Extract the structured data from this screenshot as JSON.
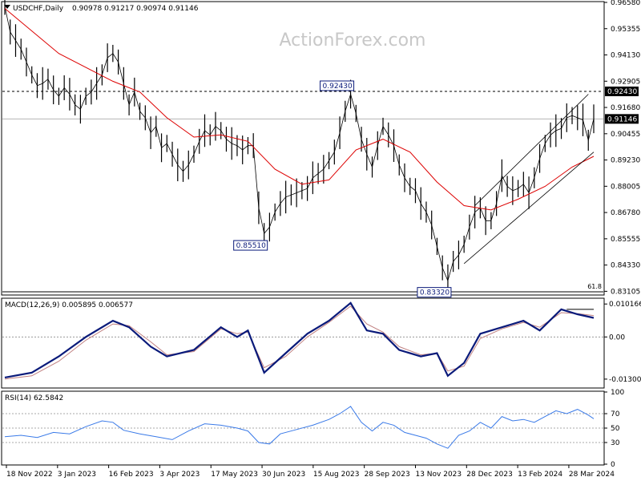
{
  "header": {
    "symbol_info": "USDCHF,Daily",
    "ohlc": "0.90978 0.91217 0.90974 0.91146",
    "watermark": "ActionForex.com"
  },
  "colors": {
    "price": "#000000",
    "ma": "#dd0000",
    "macd": "#0a1a7a",
    "signal": "#c08080",
    "rsi": "#3a7ae8",
    "channel": "#000000",
    "label_box": "#0a1a7a",
    "background": "#ffffff"
  },
  "chart_data": [
    {
      "type": "line",
      "name": "price",
      "title": "USDCHF,Daily",
      "ylim": [
        0.8297,
        0.9658
      ],
      "y_ticks": [
        "0.96580",
        "0.95355",
        "0.94130",
        "0.92905",
        "0.91680",
        "0.90455",
        "0.89230",
        "0.88005",
        "0.86780",
        "0.85555",
        "0.84330",
        "0.83105"
      ],
      "current_value": "0.91146",
      "reference_level": "0.92430",
      "fib_label": "61.8",
      "x_labels": [
        "18 Nov 2022",
        "3 Jan 2023",
        "16 Feb 2023",
        "3 Apr 2023",
        "17 May 2023",
        "30 Jun 2023",
        "15 Aug 2023",
        "28 Sep 2023",
        "13 Nov 2023",
        "28 Dec 2023",
        "13 Feb 2024",
        "28 Mar 2024"
      ],
      "annotations": [
        {
          "label": "0.92430",
          "date_index": 64,
          "value": 0.9243
        },
        {
          "label": "0.85510",
          "date_index": 48,
          "value": 0.8551
        },
        {
          "label": "0.83320",
          "date_index": 82,
          "value": 0.8332
        }
      ],
      "price_points": [
        [
          0,
          0.964
        ],
        [
          1,
          0.952
        ],
        [
          2,
          0.948
        ],
        [
          3,
          0.944
        ],
        [
          4,
          0.938
        ],
        [
          5,
          0.932
        ],
        [
          6,
          0.927
        ],
        [
          7,
          0.928
        ],
        [
          8,
          0.93
        ],
        [
          9,
          0.925
        ],
        [
          10,
          0.922
        ],
        [
          11,
          0.926
        ],
        [
          12,
          0.923
        ],
        [
          13,
          0.918
        ],
        [
          14,
          0.916
        ],
        [
          15,
          0.922
        ],
        [
          16,
          0.924
        ],
        [
          17,
          0.928
        ],
        [
          18,
          0.932
        ],
        [
          19,
          0.94
        ],
        [
          20,
          0.942
        ],
        [
          21,
          0.938
        ],
        [
          22,
          0.928
        ],
        [
          23,
          0.918
        ],
        [
          24,
          0.924
        ],
        [
          25,
          0.915
        ],
        [
          26,
          0.912
        ],
        [
          27,
          0.905
        ],
        [
          28,
          0.908
        ],
        [
          29,
          0.898
        ],
        [
          30,
          0.9
        ],
        [
          31,
          0.895
        ],
        [
          32,
          0.89
        ],
        [
          33,
          0.887
        ],
        [
          34,
          0.89
        ],
        [
          35,
          0.895
        ],
        [
          36,
          0.901
        ],
        [
          37,
          0.906
        ],
        [
          38,
          0.904
        ],
        [
          39,
          0.908
        ],
        [
          40,
          0.906
        ],
        [
          41,
          0.902
        ],
        [
          42,
          0.9
        ],
        [
          43,
          0.899
        ],
        [
          44,
          0.897
        ],
        [
          45,
          0.899
        ],
        [
          46,
          0.899
        ],
        [
          47,
          0.87
        ],
        [
          48,
          0.858
        ],
        [
          49,
          0.861
        ],
        [
          50,
          0.868
        ],
        [
          51,
          0.872
        ],
        [
          52,
          0.875
        ],
        [
          53,
          0.876
        ],
        [
          54,
          0.877
        ],
        [
          55,
          0.878
        ],
        [
          56,
          0.879
        ],
        [
          57,
          0.884
        ],
        [
          58,
          0.886
        ],
        [
          59,
          0.888
        ],
        [
          60,
          0.892
        ],
        [
          61,
          0.896
        ],
        [
          62,
          0.905
        ],
        [
          63,
          0.915
        ],
        [
          64,
          0.923
        ],
        [
          65,
          0.914
        ],
        [
          66,
          0.902
        ],
        [
          67,
          0.895
        ],
        [
          68,
          0.889
        ],
        [
          69,
          0.899
        ],
        [
          70,
          0.908
        ],
        [
          71,
          0.904
        ],
        [
          72,
          0.899
        ],
        [
          73,
          0.89
        ],
        [
          74,
          0.884
        ],
        [
          75,
          0.88
        ],
        [
          76,
          0.878
        ],
        [
          77,
          0.872
        ],
        [
          78,
          0.868
        ],
        [
          79,
          0.862
        ],
        [
          80,
          0.852
        ],
        [
          81,
          0.842
        ],
        [
          82,
          0.836
        ],
        [
          83,
          0.845
        ],
        [
          84,
          0.848
        ],
        [
          85,
          0.853
        ],
        [
          86,
          0.861
        ],
        [
          87,
          0.868
        ],
        [
          88,
          0.87
        ],
        [
          89,
          0.864
        ],
        [
          90,
          0.864
        ],
        [
          91,
          0.872
        ],
        [
          92,
          0.885
        ],
        [
          93,
          0.88
        ],
        [
          94,
          0.878
        ],
        [
          95,
          0.879
        ],
        [
          96,
          0.881
        ],
        [
          97,
          0.877
        ],
        [
          98,
          0.884
        ],
        [
          99,
          0.893
        ],
        [
          100,
          0.9
        ],
        [
          101,
          0.904
        ],
        [
          102,
          0.906
        ],
        [
          103,
          0.907
        ],
        [
          104,
          0.912
        ],
        [
          105,
          0.913
        ],
        [
          106,
          0.912
        ],
        [
          107,
          0.911
        ],
        [
          108,
          0.9015
        ],
        [
          109,
          0.9115
        ]
      ],
      "moving_average": [
        [
          0,
          0.963
        ],
        [
          10,
          0.942
        ],
        [
          20,
          0.929
        ],
        [
          25,
          0.924
        ],
        [
          30,
          0.912
        ],
        [
          35,
          0.903
        ],
        [
          40,
          0.904
        ],
        [
          45,
          0.901
        ],
        [
          50,
          0.888
        ],
        [
          55,
          0.881
        ],
        [
          60,
          0.883
        ],
        [
          65,
          0.897
        ],
        [
          70,
          0.902
        ],
        [
          75,
          0.896
        ],
        [
          80,
          0.882
        ],
        [
          85,
          0.871
        ],
        [
          90,
          0.869
        ],
        [
          95,
          0.874
        ],
        [
          100,
          0.88
        ],
        [
          105,
          0.889
        ],
        [
          109,
          0.894
        ]
      ],
      "channel": {
        "upper": [
          [
            87,
            0.871
          ],
          [
            108,
            0.923
          ]
        ],
        "lower": [
          [
            85,
            0.844
          ],
          [
            109,
            0.896
          ]
        ]
      }
    },
    {
      "type": "line",
      "name": "macd",
      "title": "MACD(12,26,9) 0.005895 0.006577",
      "ylim": [
        -0.0155,
        0.0117
      ],
      "y_ticks": [
        "0.010166",
        "0.00",
        "-0.013006"
      ],
      "macd": [
        [
          0,
          -0.0125
        ],
        [
          5,
          -0.011
        ],
        [
          10,
          -0.006
        ],
        [
          15,
          0.0
        ],
        [
          20,
          0.005
        ],
        [
          23,
          0.003
        ],
        [
          27,
          -0.003
        ],
        [
          30,
          -0.006
        ],
        [
          35,
          -0.004
        ],
        [
          40,
          0.003
        ],
        [
          43,
          0.0
        ],
        [
          45,
          0.002
        ],
        [
          48,
          -0.011
        ],
        [
          52,
          -0.005
        ],
        [
          56,
          0.001
        ],
        [
          60,
          0.005
        ],
        [
          64,
          0.0105
        ],
        [
          67,
          0.002
        ],
        [
          70,
          0.001
        ],
        [
          73,
          -0.004
        ],
        [
          77,
          -0.006
        ],
        [
          80,
          -0.005
        ],
        [
          82,
          -0.012
        ],
        [
          85,
          -0.008
        ],
        [
          88,
          0.001
        ],
        [
          92,
          0.003
        ],
        [
          96,
          0.005
        ],
        [
          99,
          0.002
        ],
        [
          103,
          0.0085
        ],
        [
          106,
          0.007
        ],
        [
          109,
          0.0059
        ]
      ],
      "signal": [
        [
          0,
          -0.013
        ],
        [
          5,
          -0.012
        ],
        [
          10,
          -0.0075
        ],
        [
          15,
          -0.001
        ],
        [
          20,
          0.004
        ],
        [
          23,
          0.0035
        ],
        [
          27,
          -0.0015
        ],
        [
          30,
          -0.0055
        ],
        [
          35,
          -0.0045
        ],
        [
          40,
          0.0025
        ],
        [
          43,
          0.001
        ],
        [
          45,
          0.0015
        ],
        [
          48,
          -0.0095
        ],
        [
          52,
          -0.006
        ],
        [
          56,
          0.0
        ],
        [
          60,
          0.0045
        ],
        [
          64,
          0.0095
        ],
        [
          67,
          0.004
        ],
        [
          70,
          0.0015
        ],
        [
          73,
          -0.003
        ],
        [
          77,
          -0.0055
        ],
        [
          80,
          -0.005
        ],
        [
          82,
          -0.0105
        ],
        [
          85,
          -0.009
        ],
        [
          88,
          -0.0005
        ],
        [
          92,
          0.0025
        ],
        [
          96,
          0.0045
        ],
        [
          99,
          0.003
        ],
        [
          103,
          0.0075
        ],
        [
          106,
          0.0072
        ],
        [
          109,
          0.0066
        ]
      ],
      "resistance": [
        [
          104,
          0.0085
        ],
        [
          109,
          0.0085
        ]
      ]
    },
    {
      "type": "line",
      "name": "rsi",
      "title": "RSI(14) 62.5842",
      "ylim": [
        0,
        100
      ],
      "y_ticks": [
        "100",
        "70",
        "50",
        "30",
        "0"
      ],
      "levels": [
        70,
        50,
        30
      ],
      "rsi": [
        [
          0,
          38
        ],
        [
          3,
          40
        ],
        [
          6,
          37
        ],
        [
          9,
          44
        ],
        [
          12,
          42
        ],
        [
          15,
          52
        ],
        [
          18,
          60
        ],
        [
          20,
          58
        ],
        [
          22,
          47
        ],
        [
          25,
          42
        ],
        [
          28,
          38
        ],
        [
          31,
          34
        ],
        [
          34,
          46
        ],
        [
          37,
          56
        ],
        [
          40,
          54
        ],
        [
          43,
          50
        ],
        [
          45,
          46
        ],
        [
          47,
          30
        ],
        [
          49,
          28
        ],
        [
          51,
          42
        ],
        [
          54,
          48
        ],
        [
          57,
          54
        ],
        [
          60,
          62
        ],
        [
          62,
          70
        ],
        [
          64,
          80
        ],
        [
          66,
          58
        ],
        [
          68,
          46
        ],
        [
          70,
          58
        ],
        [
          72,
          54
        ],
        [
          74,
          44
        ],
        [
          76,
          40
        ],
        [
          78,
          36
        ],
        [
          80,
          28
        ],
        [
          82,
          22
        ],
        [
          84,
          40
        ],
        [
          86,
          46
        ],
        [
          88,
          58
        ],
        [
          90,
          50
        ],
        [
          92,
          66
        ],
        [
          94,
          60
        ],
        [
          96,
          62
        ],
        [
          98,
          58
        ],
        [
          100,
          66
        ],
        [
          102,
          74
        ],
        [
          104,
          70
        ],
        [
          106,
          76
        ],
        [
          108,
          68
        ],
        [
          109,
          63
        ]
      ]
    }
  ]
}
